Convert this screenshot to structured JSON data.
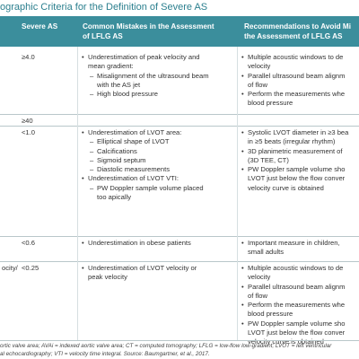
{
  "title": "ographic Criteria for the Definition of Severe AS",
  "header": {
    "cells": [
      [
        "Severe AS"
      ],
      [
        "Common Mistakes in the Assessment",
        "of LFLG AS"
      ],
      [
        "Recommendations to Avoid Mi",
        "the Assessment of LFLG AS"
      ]
    ]
  },
  "rows": [
    {
      "label": "",
      "value": "≥4.0",
      "mistakes": [
        {
          "level": 0,
          "lines": [
            "Underestimation of peak velocity and",
            "mean gradient:"
          ]
        },
        {
          "level": 1,
          "lines": [
            "Misalignment of the ultrasound beam",
            "with the AS jet"
          ]
        },
        {
          "level": 1,
          "lines": [
            "High blood pressure"
          ]
        }
      ],
      "recs": [
        {
          "level": 0,
          "lines": [
            "Multiple acoustic windows to de",
            "velocity"
          ]
        },
        {
          "level": 0,
          "lines": [
            "Parallel ultrasound beam alignm",
            "of flow"
          ]
        },
        {
          "level": 0,
          "lines": [
            "Perform the measurements whe",
            "blood pressure"
          ]
        }
      ]
    },
    {
      "label": "",
      "value": "≥40",
      "mistakes": [],
      "recs": []
    },
    {
      "label": "",
      "value": "<1.0",
      "mistakes": [
        {
          "level": 0,
          "lines": [
            "Underestimation of LVOT area:"
          ]
        },
        {
          "level": 1,
          "lines": [
            "Elliptical shape of LVOT"
          ]
        },
        {
          "level": 1,
          "lines": [
            "Calcifications"
          ]
        },
        {
          "level": 1,
          "lines": [
            "Sigmoid septum"
          ]
        },
        {
          "level": 1,
          "lines": [
            "Diastolic measurements"
          ]
        },
        {
          "level": 0,
          "lines": [
            "Underestimation of LVOT VTI:"
          ]
        },
        {
          "level": 1,
          "lines": [
            "PW Doppler sample volume placed",
            "too apically"
          ]
        }
      ],
      "recs": [
        {
          "level": 0,
          "lines": [
            "Systolic LVOT diameter in ≥3 bea",
            "in ≥5 beats (irregular rhythm)"
          ]
        },
        {
          "level": 0,
          "lines": [
            "3D planimetric measurement of",
            "(3D TEE, CT)"
          ]
        },
        {
          "level": 0,
          "lines": [
            "PW Doppler sample volume sho",
            "LVOT just below the flow conver",
            "velocity curve is obtained"
          ]
        }
      ]
    },
    {
      "label": "",
      "value": "<0.6",
      "mistakes": [
        {
          "level": 0,
          "lines": [
            "Underestimation in obese patients"
          ]
        }
      ],
      "recs": [
        {
          "level": 0,
          "lines": [
            "Important measure in children, ",
            "small adults"
          ]
        }
      ]
    },
    {
      "label": "ocity/",
      "value": "<0.25",
      "mistakes": [
        {
          "level": 0,
          "lines": [
            "Underestimation of LVOT velocity or",
            "peak velocity"
          ]
        }
      ],
      "recs": [
        {
          "level": 0,
          "lines": [
            "Multiple acoustic windows to de",
            "velocity"
          ]
        },
        {
          "level": 0,
          "lines": [
            "Parallel ultrasound beam alignm",
            "of flow"
          ]
        },
        {
          "level": 0,
          "lines": [
            "Perform the measurements whe",
            "blood pressure"
          ]
        },
        {
          "level": 0,
          "lines": [
            "PW Doppler sample volume sho",
            "LVOT just below the flow conver",
            "velocity curve is obtained"
          ]
        }
      ]
    }
  ],
  "footnote": [
    "ortic valve area; AVAi = indexed aortic valve area; CT = computed tomography; LFLG = low-flow low-gradient; LVOT = left ventricular",
    "al echocardiography; VTI = velocity time integral. Source: Baumgartner, et al., 2017."
  ]
}
